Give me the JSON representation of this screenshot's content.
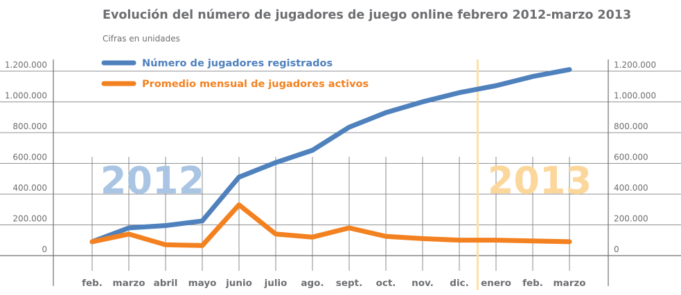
{
  "chart_data": {
    "type": "line",
    "title": "Evolución del número de jugadores de juego online febrero 2012-marzo 2013",
    "subtitle": "Cifras en unidades",
    "categories": [
      "feb.",
      "marzo",
      "abril",
      "mayo",
      "junio",
      "julio",
      "ago.",
      "sept.",
      "oct.",
      "nov.",
      "dic.",
      "enero",
      "feb.",
      "marzo"
    ],
    "y_ticks": [
      "0",
      "200.000",
      "400.000",
      "600.000",
      "800.000",
      "1.000.000",
      "1.200.000"
    ],
    "ylim": [
      0,
      1200000
    ],
    "grid": true,
    "legend_position": "top-left",
    "year_labels": [
      "2012",
      "2013"
    ],
    "year_boundary_between": [
      "dic.",
      "enero"
    ],
    "series": [
      {
        "name": "Número de jugadores registrados",
        "color": "#4f81bd",
        "values": [
          50000,
          140000,
          155000,
          185000,
          470000,
          565000,
          645000,
          795000,
          890000,
          960000,
          1020000,
          1065000,
          1125000,
          1170000
        ]
      },
      {
        "name": "Promedio mensual de jugadores activos",
        "color": "#f38120",
        "values": [
          50000,
          100000,
          30000,
          25000,
          290000,
          100000,
          80000,
          140000,
          85000,
          70000,
          60000,
          60000,
          55000,
          50000
        ]
      }
    ],
    "colors": {
      "text": "#6d6e71",
      "grid": "#6d6e71",
      "year_2012": "#a9c5e3",
      "year_2013": "#fcd79c",
      "year_divider": "#fce1a8"
    }
  }
}
